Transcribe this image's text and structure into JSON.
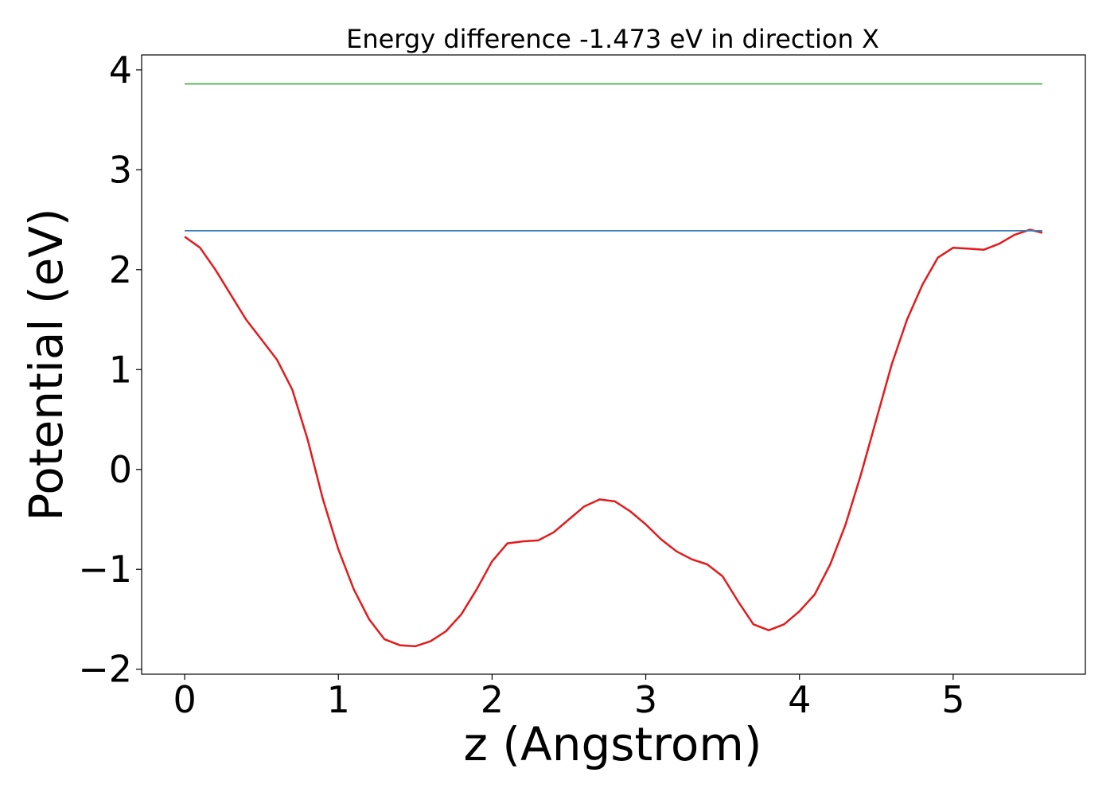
{
  "chart_data": {
    "type": "line",
    "title": "Energy difference -1.473 eV in direction X",
    "xlabel": "z (Angstrom)",
    "ylabel": "Potential (eV)",
    "xlim": [
      -0.28,
      5.86
    ],
    "ylim": [
      -2.05,
      4.15
    ],
    "xticks": [
      0,
      1,
      2,
      3,
      4,
      5
    ],
    "xtick_labels": [
      "0",
      "1",
      "2",
      "3",
      "4",
      "5"
    ],
    "yticks": [
      -2,
      -1,
      0,
      1,
      2,
      3,
      4
    ],
    "ytick_labels": [
      "−2",
      "−1",
      "0",
      "1",
      "2",
      "3",
      "4"
    ],
    "grid": false,
    "series": [
      {
        "color": "#e41a1c",
        "x": [
          0,
          0.1,
          0.2,
          0.3,
          0.4,
          0.5,
          0.6,
          0.7,
          0.8,
          0.9,
          1.0,
          1.1,
          1.2,
          1.3,
          1.4,
          1.5,
          1.6,
          1.7,
          1.8,
          1.9,
          2.0,
          2.1,
          2.2,
          2.3,
          2.4,
          2.5,
          2.6,
          2.7,
          2.8,
          2.9,
          3.0,
          3.1,
          3.2,
          3.3,
          3.4,
          3.5,
          3.6,
          3.7,
          3.8,
          3.9,
          4.0,
          4.1,
          4.2,
          4.3,
          4.4,
          4.5,
          4.6,
          4.7,
          4.8,
          4.9,
          5.0,
          5.1,
          5.2,
          5.3,
          5.4,
          5.5,
          5.58
        ],
        "y": [
          2.33,
          2.22,
          2.0,
          1.75,
          1.5,
          1.3,
          1.1,
          0.8,
          0.3,
          -0.3,
          -0.8,
          -1.2,
          -1.5,
          -1.7,
          -1.76,
          -1.77,
          -1.72,
          -1.62,
          -1.45,
          -1.2,
          -0.92,
          -0.74,
          -0.72,
          -0.71,
          -0.63,
          -0.5,
          -0.37,
          -0.3,
          -0.32,
          -0.42,
          -0.55,
          -0.7,
          -0.82,
          -0.9,
          -0.95,
          -1.07,
          -1.32,
          -1.55,
          -1.61,
          -1.55,
          -1.42,
          -1.25,
          -0.95,
          -0.55,
          -0.05,
          0.5,
          1.05,
          1.5,
          1.85,
          2.12,
          2.22,
          2.21,
          2.2,
          2.26,
          2.35,
          2.4,
          2.37
        ]
      },
      {
        "color": "#377eb8",
        "x": [
          0,
          5.58
        ],
        "y": [
          2.39,
          2.39
        ]
      },
      {
        "color": "#4daf4a",
        "x": [
          0,
          5.58
        ],
        "y": [
          3.86,
          3.86
        ]
      }
    ]
  }
}
